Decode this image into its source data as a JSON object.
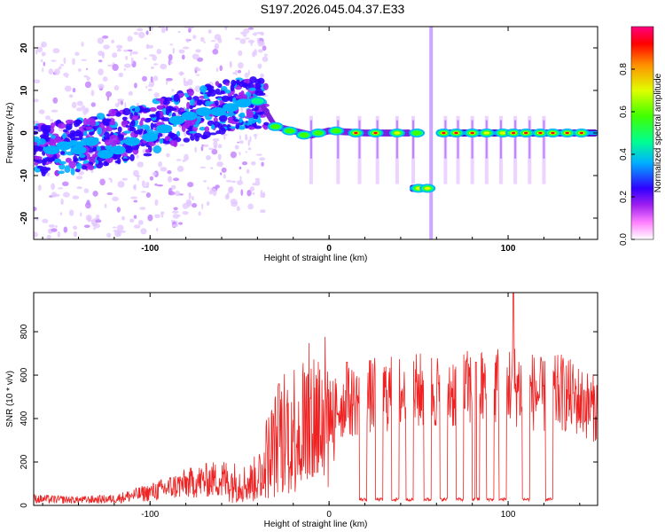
{
  "page_title": "S197.2026.045.04.37.E33",
  "chart_data": [
    {
      "type": "heatmap",
      "title": "S197.2026.045.04.37.E33",
      "xlabel": "Height of straight line (km)",
      "ylabel": "Frequency (Hz)",
      "xlim": [
        -165,
        150
      ],
      "ylim": [
        -25,
        25
      ],
      "xticks": [
        -100,
        0,
        100
      ],
      "yticks": [
        -20,
        -10,
        0,
        10,
        20
      ],
      "colorbar": {
        "label": "Normalized spectral amplitude",
        "range": [
          0,
          1
        ],
        "ticks": [
          "0.0",
          "0.2",
          "0.4",
          "0.6",
          "0.8"
        ],
        "colormap": [
          "#ffffff",
          "#ff40ff",
          "#8000ff",
          "#0000ff",
          "#00c0ff",
          "#00ff80",
          "#40ff00",
          "#ffff00",
          "#ff8000",
          "#ff0000"
        ]
      },
      "ridge": {
        "description": "dominant frequency track",
        "x": [
          -165,
          -140,
          -120,
          -100,
          -80,
          -60,
          -45,
          -38,
          -30,
          -20,
          -10,
          0,
          20,
          40,
          45
        ],
        "freq": [
          -4,
          -3,
          -1,
          1,
          4,
          6,
          7,
          7,
          1.5,
          0.5,
          -0.5,
          0.5,
          0,
          0,
          0
        ]
      },
      "segments": [
        {
          "x": [
            45,
            58
          ],
          "freq": -13
        },
        {
          "x": [
            60,
            150
          ],
          "freq": 0
        }
      ],
      "blobs": [
        {
          "x": -155,
          "f": -4,
          "a": 0.35
        },
        {
          "x": -148,
          "f": -3,
          "a": 0.3
        },
        {
          "x": -140,
          "f": -4,
          "a": 0.25
        },
        {
          "x": -133,
          "f": -2,
          "a": 0.3
        },
        {
          "x": -125,
          "f": -5,
          "a": 0.25
        },
        {
          "x": -118,
          "f": -4,
          "a": 0.35
        },
        {
          "x": -110,
          "f": -2,
          "a": 0.3
        },
        {
          "x": -100,
          "f": -1,
          "a": 0.35
        },
        {
          "x": -92,
          "f": 1,
          "a": 0.3
        },
        {
          "x": -85,
          "f": 3,
          "a": 0.3
        },
        {
          "x": -78,
          "f": 4,
          "a": 0.3
        },
        {
          "x": -70,
          "f": 5,
          "a": 0.3
        },
        {
          "x": -62,
          "f": 5,
          "a": 0.3
        },
        {
          "x": -55,
          "f": 6,
          "a": 0.3
        },
        {
          "x": -48,
          "f": 7,
          "a": 0.3
        },
        {
          "x": -40,
          "f": 7.5,
          "a": 0.4
        },
        {
          "x": -30,
          "f": 1.5,
          "a": 0.5
        },
        {
          "x": -22,
          "f": 0.5,
          "a": 0.5
        },
        {
          "x": -14,
          "f": -0.5,
          "a": 0.5
        },
        {
          "x": -6,
          "f": 0,
          "a": 0.5
        },
        {
          "x": 4,
          "f": 0.5,
          "a": 0.55
        },
        {
          "x": 15,
          "f": 0,
          "a": 0.9
        },
        {
          "x": 26,
          "f": 0,
          "a": 0.8
        },
        {
          "x": 38,
          "f": 0,
          "a": 0.7
        },
        {
          "x": 49,
          "f": 0,
          "a": 0.6
        },
        {
          "x": 50,
          "f": -13,
          "a": 0.65
        },
        {
          "x": 55,
          "f": -13,
          "a": 0.75
        },
        {
          "x": 64,
          "f": 0,
          "a": 0.85
        },
        {
          "x": 71,
          "f": 0,
          "a": 0.85
        },
        {
          "x": 80,
          "f": 0,
          "a": 0.8
        },
        {
          "x": 88,
          "f": 0,
          "a": 0.75
        },
        {
          "x": 97,
          "f": 0,
          "a": 0.7
        },
        {
          "x": 103,
          "f": 0,
          "a": 0.8
        },
        {
          "x": 110,
          "f": 0,
          "a": 0.8
        },
        {
          "x": 118,
          "f": 0,
          "a": 0.8
        },
        {
          "x": 125,
          "f": 0,
          "a": 0.95
        },
        {
          "x": 133,
          "f": 0,
          "a": 0.98
        },
        {
          "x": 141,
          "f": 0,
          "a": 0.95
        }
      ]
    },
    {
      "type": "line",
      "xlabel": "Height of straight line (km)",
      "ylabel": "SNR (10 * v/v)",
      "xlim": [
        -165,
        150
      ],
      "ylim": [
        0,
        980
      ],
      "xticks": [
        -100,
        0,
        100
      ],
      "yticks": [
        0,
        200,
        400,
        600,
        800
      ],
      "color": "#ee2222",
      "envelope": {
        "x": [
          -165,
          -140,
          -120,
          -100,
          -80,
          -65,
          -55,
          -45,
          -40,
          -35,
          -25,
          -10,
          0,
          10,
          20,
          30,
          45,
          60,
          75,
          90,
          100,
          110,
          120,
          130,
          140,
          150
        ],
        "snr": [
          30,
          25,
          30,
          60,
          100,
          120,
          110,
          100,
          130,
          220,
          340,
          400,
          430,
          470,
          500,
          510,
          520,
          530,
          530,
          550,
          560,
          540,
          500,
          520,
          480,
          440
        ]
      },
      "dips": [
        {
          "x": [
            17,
            21
          ],
          "snr": 20
        },
        {
          "x": [
            26,
            30
          ],
          "snr": 20
        },
        {
          "x": [
            35,
            39
          ],
          "snr": 20
        },
        {
          "x": [
            43,
            47
          ],
          "snr": 20
        },
        {
          "x": [
            53,
            57
          ],
          "snr": 20
        },
        {
          "x": [
            62,
            66
          ],
          "snr": 20
        },
        {
          "x": [
            71,
            75
          ],
          "snr": 20
        },
        {
          "x": [
            80,
            84
          ],
          "snr": 20
        },
        {
          "x": [
            88,
            92
          ],
          "snr": 20
        },
        {
          "x": [
            95,
            99
          ],
          "snr": 20
        },
        {
          "x": [
            108,
            112
          ],
          "snr": 20
        },
        {
          "x": [
            121,
            125
          ],
          "snr": 20
        }
      ],
      "spikes": [
        {
          "x": 103,
          "snr": 980
        },
        {
          "x": 10,
          "snr": 660
        },
        {
          "x": 82,
          "snr": 660
        },
        {
          "x": -28,
          "snr": 560
        }
      ]
    }
  ]
}
